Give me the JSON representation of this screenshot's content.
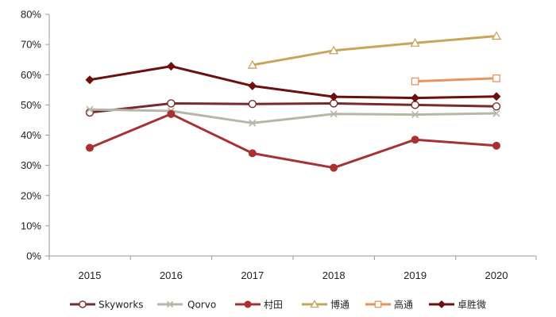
{
  "chart_data": {
    "type": "line",
    "categories": [
      "2015",
      "2016",
      "2017",
      "2018",
      "2019",
      "2020"
    ],
    "ylim": [
      0,
      80
    ],
    "yticks": [
      "0%",
      "10%",
      "20%",
      "30%",
      "40%",
      "50%",
      "60%",
      "70%",
      "80%"
    ],
    "ytick_values": [
      0,
      10,
      20,
      30,
      40,
      50,
      60,
      70,
      80
    ],
    "grid": false,
    "legend_position": "bottom",
    "series": [
      {
        "name": "Skyworks",
        "values": [
          47.5,
          50.5,
          50.3,
          50.5,
          50.0,
          49.5
        ],
        "color": "#7a2a2a",
        "marker": "open-circle"
      },
      {
        "name": "Qorvo",
        "values": [
          48.5,
          48.0,
          44.0,
          47.0,
          46.8,
          47.2
        ],
        "color": "#b7b7a8",
        "marker": "x"
      },
      {
        "name": "村田",
        "values": [
          35.8,
          47.0,
          34.0,
          29.2,
          38.5,
          36.5
        ],
        "color": "#a83232",
        "marker": "filled-circle"
      },
      {
        "name": "博通",
        "values": [
          null,
          null,
          63.2,
          68.0,
          70.5,
          72.8
        ],
        "color": "#c9a55c",
        "marker": "open-triangle"
      },
      {
        "name": "高通",
        "values": [
          null,
          null,
          null,
          null,
          57.8,
          58.8
        ],
        "color": "#e8945e",
        "marker": "open-square"
      },
      {
        "name": "卓胜微",
        "values": [
          58.3,
          62.8,
          56.3,
          52.7,
          52.3,
          52.8
        ],
        "color": "#6b0f0f",
        "marker": "filled-diamond"
      }
    ]
  }
}
